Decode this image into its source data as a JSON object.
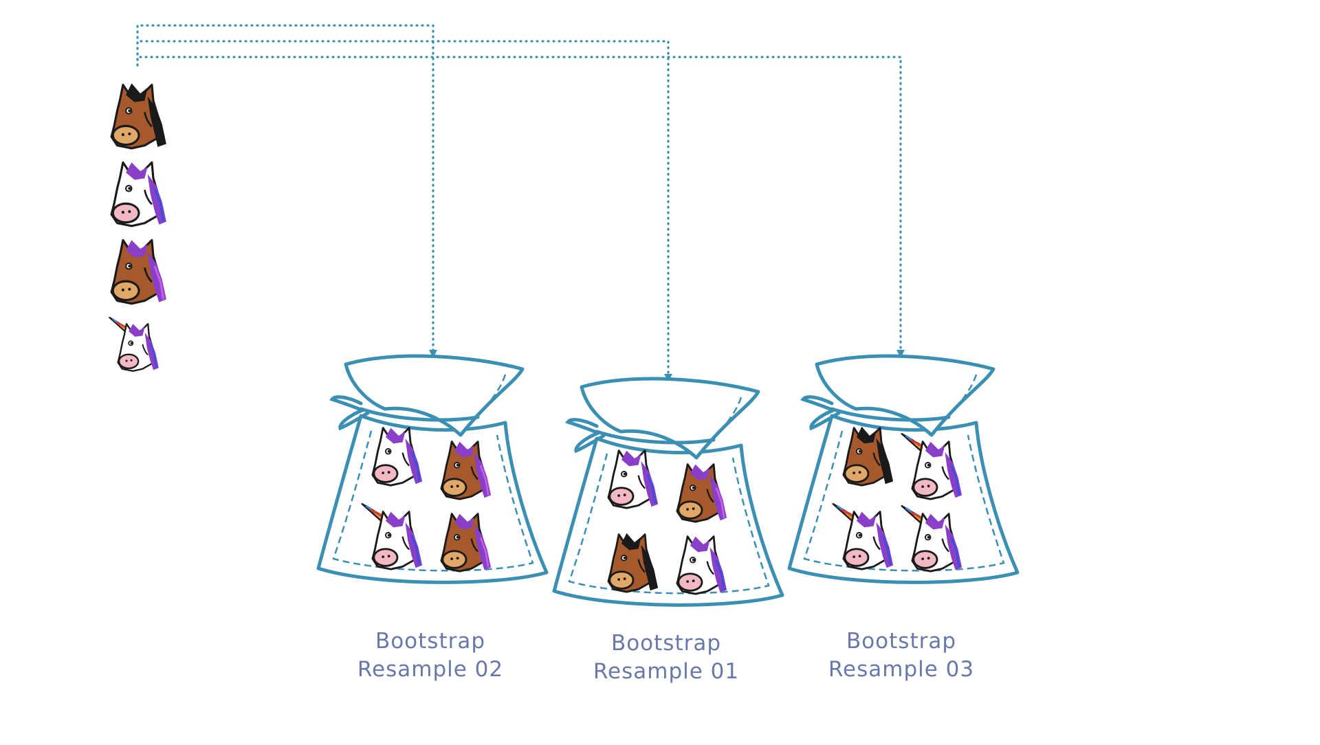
{
  "colors": {
    "accent": "#3a8fb2",
    "label": "#6878a8",
    "horse_brown": "#a5592d",
    "horse_black_mane": "#1a1a1a",
    "mane_purple": "#8a3fc8",
    "muzzle_tan": "#e0a768",
    "muzzle_pink": "#f2b8c4"
  },
  "source_items": [
    {
      "kind": "horse",
      "icon": "brown-horse-icon"
    },
    {
      "kind": "unicorn-no-horn",
      "icon": "white-horse-icon"
    },
    {
      "kind": "horse-purple-mane",
      "icon": "brown-horse-purple-mane-icon"
    },
    {
      "kind": "unicorn",
      "icon": "unicorn-icon"
    }
  ],
  "bags": [
    {
      "id": "02",
      "label_line1": "Bootstrap",
      "label_line2": "Resample 02",
      "contents": [
        "white-horse",
        "brown-horse-purple-mane",
        "unicorn",
        "brown-horse-purple-mane"
      ]
    },
    {
      "id": "01",
      "label_line1": "Bootstrap",
      "label_line2": "Resample 01",
      "contents": [
        "white-horse",
        "brown-horse-purple-mane",
        "brown-horse",
        "white-horse"
      ]
    },
    {
      "id": "03",
      "label_line1": "Bootstrap",
      "label_line2": "Resample 03",
      "contents": [
        "brown-horse",
        "unicorn",
        "unicorn",
        "unicorn"
      ]
    }
  ]
}
